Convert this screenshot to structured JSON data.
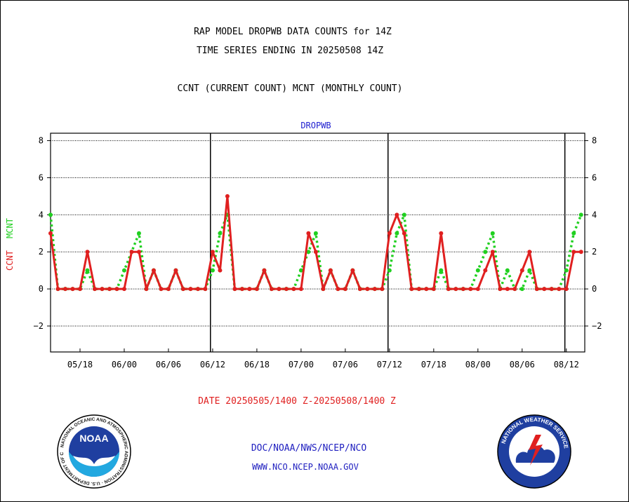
{
  "header": {
    "title_line1": "RAP MODEL DROPWB DATA COUNTS for 14Z",
    "title_line2": "TIME SERIES ENDING IN 20250508 14Z",
    "subtitle": "CCNT (CURRENT COUNT) MCNT (MONTHLY COUNT)"
  },
  "footer": {
    "date_range": "DATE 20250505/1400 Z-20250508/1400 Z",
    "org_line": "DOC/NOAA/NWS/NCEP/NCO",
    "url_line": "WWW.NCO.NCEP.NOAA.GOV"
  },
  "logos": {
    "noaa_text": "NOAA",
    "noaa_ring_text": "NATIONAL OCEANIC AND ATMOSPHERIC ADMINISTRATION · U.S. DEPARTMENT OF COMMERCE",
    "nws_ring_text": "NATIONAL WEATHER SERVICE"
  },
  "chart_data": {
    "type": "line",
    "title": "DROPWB",
    "ylabel_series": [
      {
        "name": "CCNT",
        "color": "#e02020"
      },
      {
        "name": "MCNT",
        "color": "#20d020"
      }
    ],
    "ylim": [
      -3.4,
      8.4
    ],
    "yticks": [
      -2,
      0,
      2,
      4,
      6,
      8
    ],
    "grid_y": true,
    "x_ticks": [
      {
        "label": "05/18",
        "x": 4
      },
      {
        "label": "06/00",
        "x": 10
      },
      {
        "label": "06/06",
        "x": 16
      },
      {
        "label": "06/12",
        "x": 22
      },
      {
        "label": "06/18",
        "x": 28
      },
      {
        "label": "07/00",
        "x": 34
      },
      {
        "label": "07/06",
        "x": 40
      },
      {
        "label": "07/12",
        "x": 46
      },
      {
        "label": "07/18",
        "x": 52
      },
      {
        "label": "08/00",
        "x": 58
      },
      {
        "label": "08/06",
        "x": 64
      },
      {
        "label": "08/12",
        "x": 70
      }
    ],
    "day_boundaries": [
      21.7,
      45.8,
      69.8
    ],
    "series": [
      {
        "name": "CCNT",
        "color": "#e02020",
        "x": [
          0,
          1,
          2,
          3,
          4,
          5,
          6,
          7,
          8,
          9,
          10,
          11,
          12,
          13,
          14,
          15,
          16,
          17,
          18,
          19,
          20,
          21,
          22,
          23,
          24,
          25,
          26,
          27,
          28,
          29,
          30,
          31,
          32,
          33,
          34,
          35,
          36,
          37,
          38,
          39,
          40,
          41,
          42,
          43,
          44,
          45,
          46,
          47,
          48,
          49,
          50,
          51,
          52,
          53,
          54,
          55,
          56,
          57,
          58,
          59,
          60,
          61,
          62,
          63,
          64,
          65,
          66,
          67,
          68,
          69,
          70,
          71,
          72
        ],
        "values": [
          3,
          0,
          0,
          0,
          0,
          2,
          0,
          0,
          0,
          0,
          0,
          2,
          2,
          0,
          1,
          0,
          0,
          1,
          0,
          0,
          0,
          0,
          2,
          1,
          5,
          0,
          0,
          0,
          0,
          1,
          0,
          0,
          0,
          0,
          0,
          3,
          2,
          0,
          1,
          0,
          0,
          1,
          0,
          0,
          0,
          0,
          3,
          4,
          3,
          0,
          0,
          0,
          0,
          3,
          0,
          0,
          0,
          0,
          0,
          1,
          2,
          0,
          0,
          0,
          1,
          2,
          0,
          0,
          0,
          0,
          0,
          2,
          2
        ]
      },
      {
        "name": "MCNT",
        "color": "#20d020",
        "x": [
          0,
          1,
          2,
          3,
          4,
          5,
          6,
          7,
          8,
          9,
          10,
          11,
          12,
          13,
          14,
          15,
          16,
          17,
          18,
          19,
          20,
          21,
          22,
          23,
          24,
          25,
          26,
          27,
          28,
          29,
          30,
          31,
          32,
          33,
          34,
          35,
          36,
          37,
          38,
          39,
          40,
          41,
          42,
          43,
          44,
          45,
          46,
          47,
          48,
          49,
          50,
          51,
          52,
          53,
          54,
          55,
          56,
          57,
          58,
          59,
          60,
          61,
          62,
          63,
          64,
          65,
          66,
          67,
          68,
          69,
          70,
          71,
          72
        ],
        "values": [
          4,
          0,
          0,
          0,
          0,
          1,
          0,
          0,
          0,
          0,
          1,
          2,
          3,
          0,
          1,
          0,
          0,
          1,
          0,
          0,
          0,
          0,
          1,
          3,
          4,
          0,
          0,
          0,
          0,
          1,
          0,
          0,
          0,
          0,
          1,
          2,
          3,
          0,
          1,
          0,
          0,
          1,
          0,
          0,
          0,
          0,
          1,
          3,
          4,
          0,
          0,
          0,
          0,
          1,
          0,
          0,
          0,
          0,
          1,
          2,
          3,
          0,
          1,
          0,
          0,
          1,
          0,
          0,
          0,
          0,
          1,
          3,
          4
        ]
      }
    ]
  }
}
